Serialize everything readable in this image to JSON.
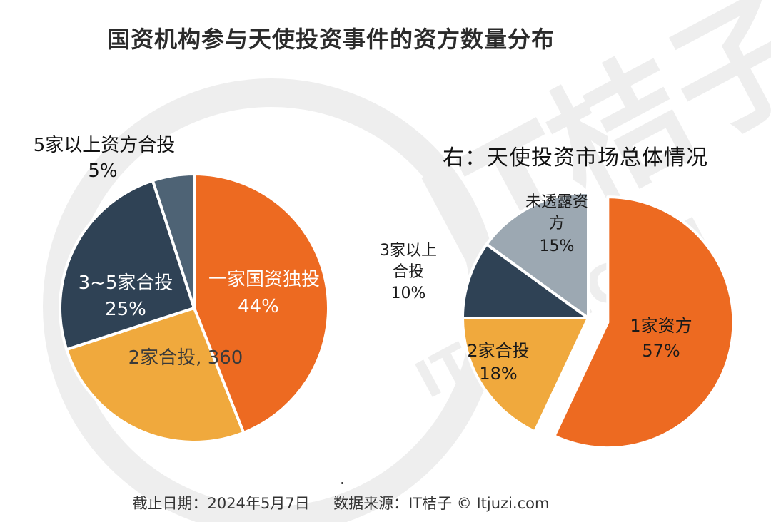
{
  "title": "国资机构参与天使投资事件的资方数量分布",
  "right_title": "右：天使投资市场总体情况",
  "footer": "截止日期：2024年5月7日     数据来源：IT桔子 © Itjuzi.com",
  "watermark": {
    "brand": "IT桔子",
    "url": "ITJUZI.COM"
  },
  "colors": {
    "orange": "#ED6A21",
    "yellow": "#F0A93D",
    "navy": "#2F4255",
    "slate": "#4E6375",
    "gray": "#9CA8B2"
  },
  "chart_data": [
    {
      "type": "pie",
      "title": "",
      "slices": [
        {
          "label": "一家国资独投",
          "value_label": "44%",
          "value": 44,
          "color": "#ED6A21",
          "explode": false
        },
        {
          "label": "2家合投, 360",
          "value_label": "",
          "value": 26,
          "color": "#F0A93D",
          "explode": false
        },
        {
          "label": "3~5家合投",
          "value_label": "25%",
          "value": 25,
          "color": "#2F4255",
          "explode": false
        },
        {
          "label": "5家以上资方合投",
          "value_label": "5%",
          "value": 5,
          "color": "#4E6375",
          "explode": false
        }
      ]
    },
    {
      "type": "pie",
      "title": "右：天使投资市场总体情况",
      "slices": [
        {
          "label": "1家资方",
          "value_label": "57%",
          "value": 57,
          "color": "#ED6A21",
          "explode": true
        },
        {
          "label": "2家合投",
          "value_label": "18%",
          "value": 18,
          "color": "#F0A93D",
          "explode": false
        },
        {
          "label": "3家以上合投",
          "value_label": "10%",
          "value": 10,
          "color": "#2F4255",
          "explode": false
        },
        {
          "label": "未透露资方",
          "value_label": "15%",
          "value": 15,
          "color": "#9CA8B2",
          "explode": false
        }
      ]
    }
  ]
}
